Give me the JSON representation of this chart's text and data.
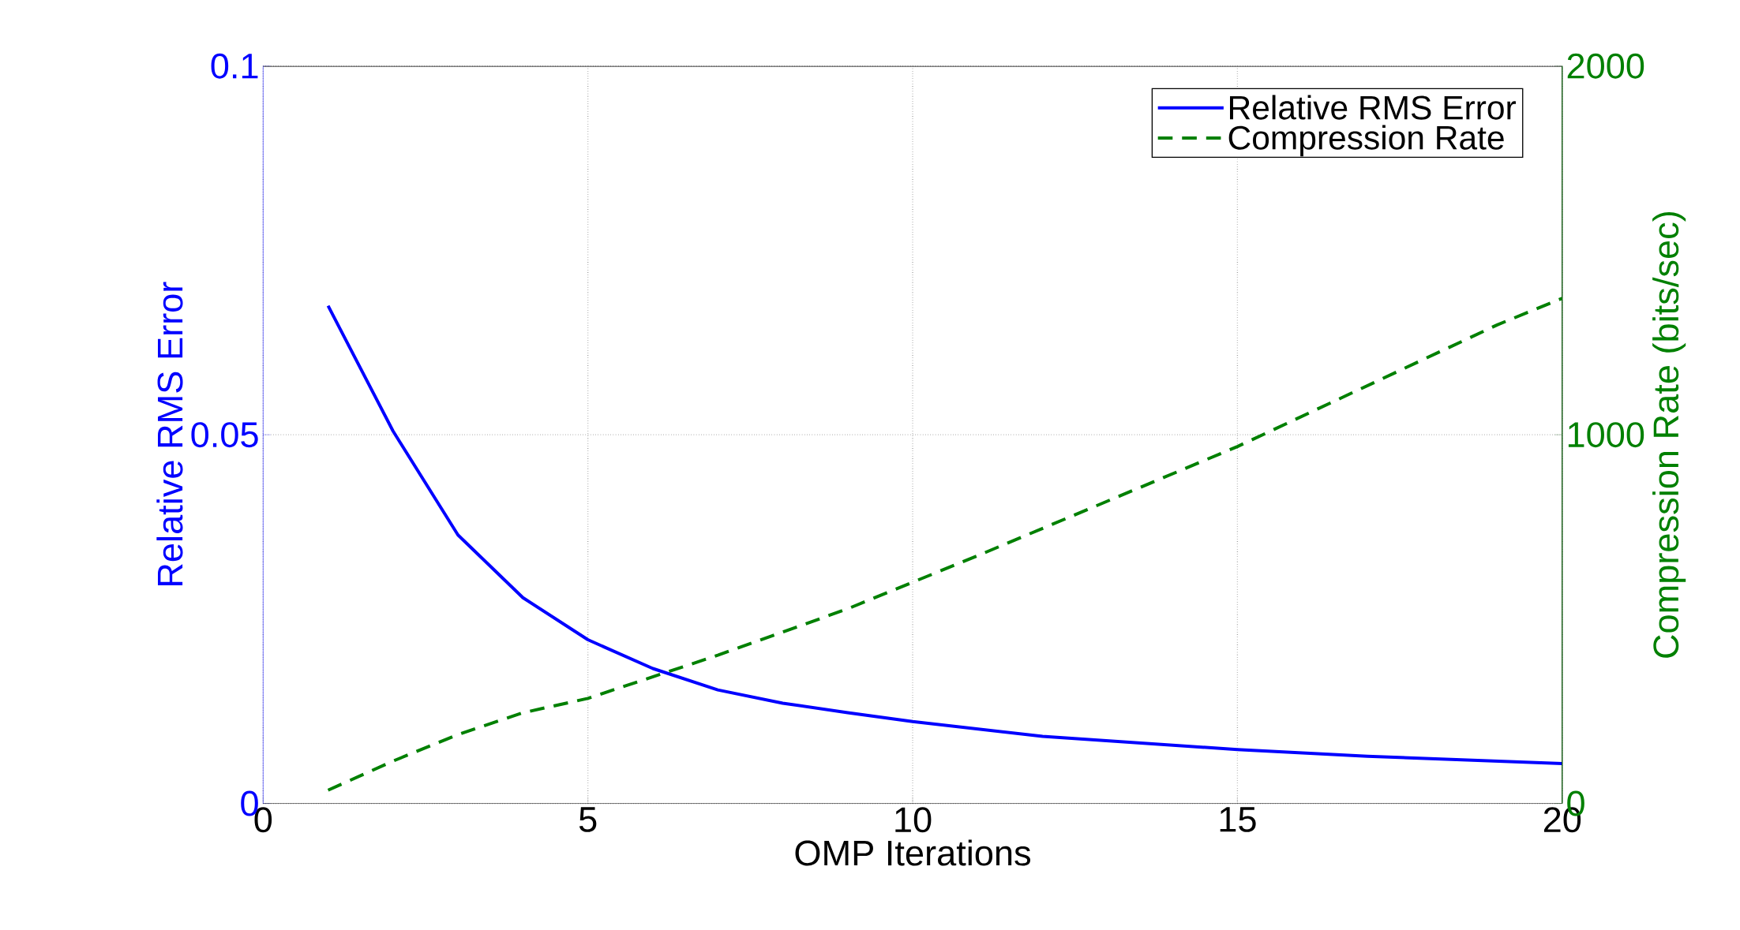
{
  "chart_data": {
    "type": "line",
    "xlabel": "OMP Iterations",
    "ylabel": "Relative RMS Error",
    "y2label": "Compression Rate (bits/sec)",
    "xlim": [
      0,
      20
    ],
    "xticks": [
      0,
      5,
      10,
      15,
      20
    ],
    "ylim": [
      0,
      0.1
    ],
    "yticks": [
      0,
      0.05,
      0.1
    ],
    "y2lim": [
      0,
      2000
    ],
    "y2ticks": [
      0,
      1000,
      2000
    ],
    "grid": true,
    "legend": "top right",
    "series": [
      {
        "name": "Relative RMS Error",
        "color": "#0000ff",
        "line_style": "solid",
        "x": [
          1,
          2,
          3,
          4,
          5,
          6,
          7,
          8,
          9,
          10,
          12,
          15,
          17,
          20
        ],
        "values": [
          0.0675,
          0.0505,
          0.0364,
          0.0279,
          0.0222,
          0.0183,
          0.0154,
          0.0136,
          0.0123,
          0.0111,
          0.0091,
          0.0073,
          0.0064,
          0.0054
        ]
      },
      {
        "name": "Compression Rate",
        "color": "#008000",
        "line_style": "dashed",
        "axis": "y2",
        "x": [
          1,
          2,
          3,
          4,
          5,
          7,
          8,
          9,
          10,
          11,
          15,
          19,
          20
        ],
        "values": [
          36,
          115,
          187,
          246,
          285,
          402,
          465,
          528,
          600,
          672,
          968,
          1298,
          1370
        ]
      }
    ]
  }
}
